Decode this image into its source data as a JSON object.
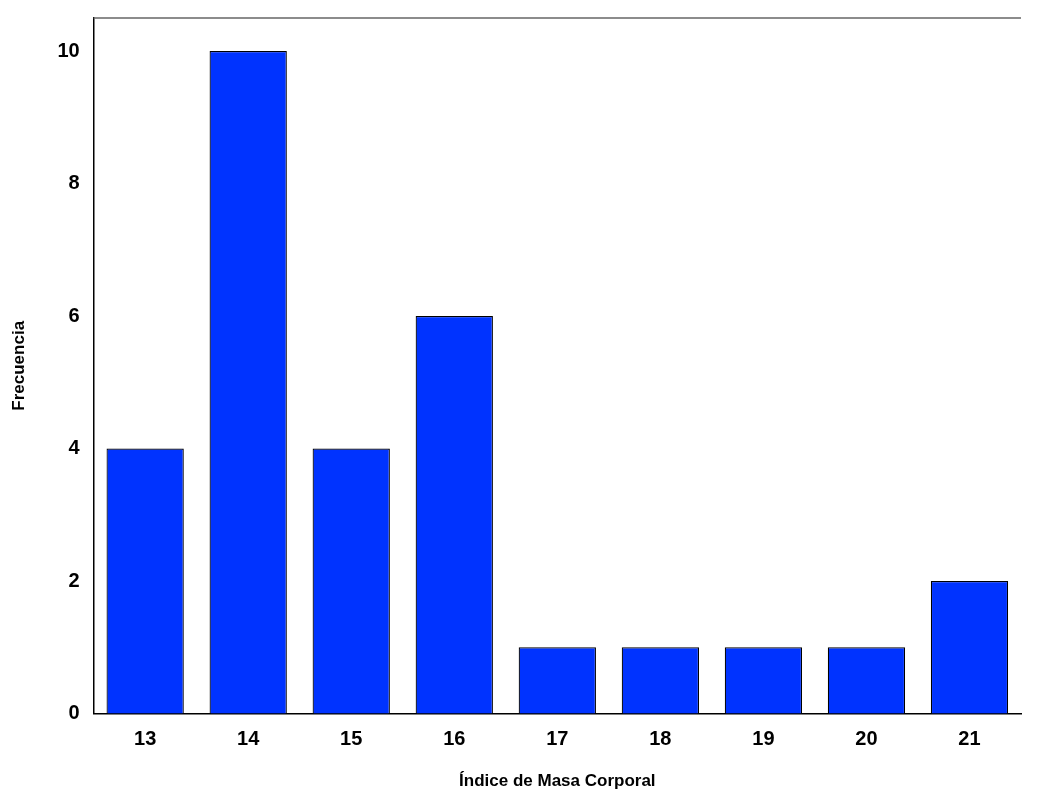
{
  "chart_data": {
    "type": "bar",
    "xlabel": "Índice de Masa Corporal",
    "ylabel": "Frecuencia",
    "categories": [
      "13",
      "14",
      "15",
      "16",
      "17",
      "18",
      "19",
      "20",
      "21"
    ],
    "values": [
      4,
      10,
      4,
      6,
      1,
      1,
      1,
      1,
      2
    ],
    "color": "#0033ff",
    "ylim": [
      0,
      10.5
    ],
    "yticks": [
      0,
      2,
      4,
      6,
      8,
      10
    ],
    "grid": false,
    "legend": false
  }
}
